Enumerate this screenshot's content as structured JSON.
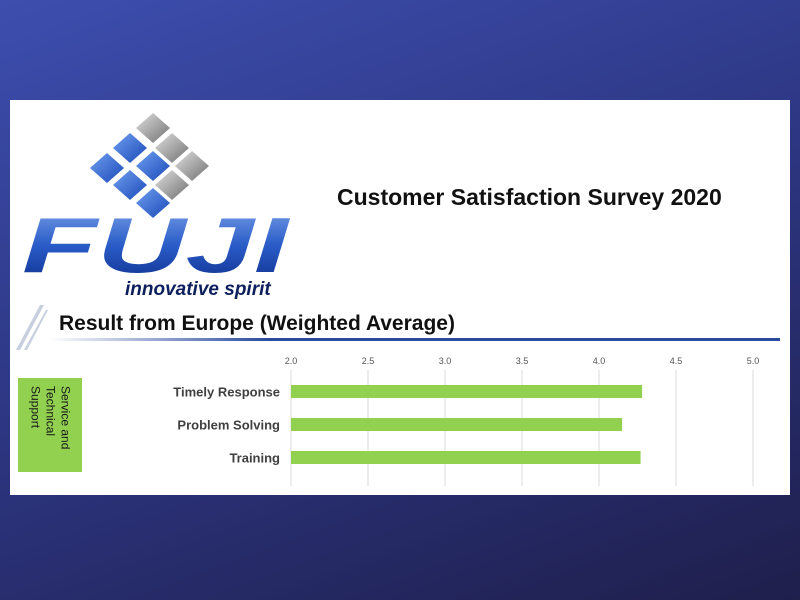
{
  "header": {
    "brand": "FUJI",
    "tagline": "innovative spirit",
    "title": "Customer Satisfaction Survey 2020"
  },
  "chart_data": {
    "type": "bar",
    "orientation": "horizontal",
    "title": "Result from Europe (Weighted Average)",
    "group_label": "Service and Technical Support",
    "categories": [
      "Timely Response",
      "Problem Solving",
      "Training"
    ],
    "values": [
      4.28,
      4.15,
      4.27
    ],
    "color": "#92d050",
    "xlim": [
      2,
      5
    ],
    "xticks": [
      {
        "value": 2,
        "label": "2.0"
      },
      {
        "value": 2.5,
        "label": "2.5"
      },
      {
        "value": 3,
        "label": "3.0"
      },
      {
        "value": 3.5,
        "label": "3.5"
      },
      {
        "value": 4,
        "label": "4.0"
      },
      {
        "value": 4.5,
        "label": "4.5"
      },
      {
        "value": 5,
        "label": "5.0"
      }
    ],
    "grid": true
  }
}
